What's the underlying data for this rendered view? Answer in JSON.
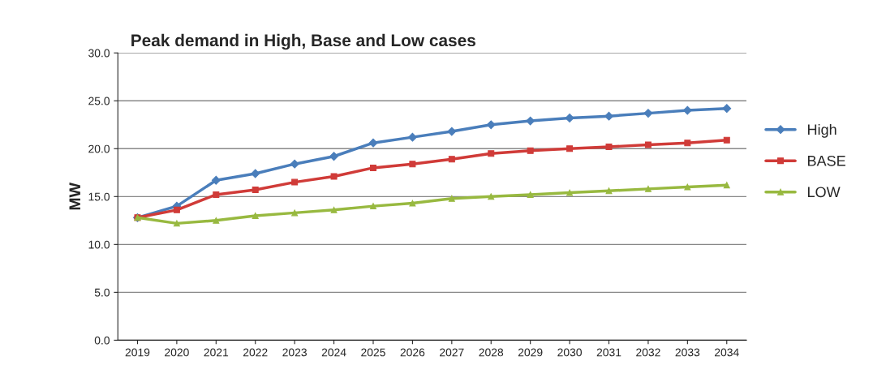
{
  "chart_data": {
    "type": "line",
    "title": "Peak demand in High, Base and Low cases",
    "ylabel": "MW",
    "categories": [
      "2019",
      "2020",
      "2021",
      "2022",
      "2023",
      "2024",
      "2025",
      "2026",
      "2027",
      "2028",
      "2029",
      "2030",
      "2031",
      "2032",
      "2033",
      "2034"
    ],
    "series": [
      {
        "name": "High",
        "color": "#4a7ebb",
        "marker": "diamond",
        "values": [
          12.8,
          14.0,
          16.7,
          17.4,
          18.4,
          19.2,
          20.6,
          21.2,
          21.8,
          22.5,
          22.9,
          23.2,
          23.4,
          23.7,
          24.0,
          24.2
        ]
      },
      {
        "name": "BASE",
        "color": "#d03b38",
        "marker": "square",
        "values": [
          12.8,
          13.6,
          15.2,
          15.7,
          16.5,
          17.1,
          18.0,
          18.4,
          18.9,
          19.5,
          19.8,
          20.0,
          20.2,
          20.4,
          20.6,
          20.9
        ]
      },
      {
        "name": "LOW",
        "color": "#98b940",
        "marker": "triangle",
        "values": [
          12.8,
          12.2,
          12.5,
          13.0,
          13.3,
          13.6,
          14.0,
          14.3,
          14.8,
          15.0,
          15.2,
          15.4,
          15.6,
          15.8,
          16.0,
          16.2
        ]
      }
    ],
    "ylim": [
      0,
      30
    ],
    "yticks": [
      {
        "value": 0,
        "label": "0.0"
      },
      {
        "value": 5,
        "label": "5.0"
      },
      {
        "value": 10,
        "label": "10.0"
      },
      {
        "value": 15,
        "label": "15.0"
      },
      {
        "value": 20,
        "label": "20.0"
      },
      {
        "value": 25,
        "label": "25.0"
      },
      {
        "value": 30,
        "label": "30.0"
      }
    ],
    "grid": "y",
    "legend": "right",
    "line_style": "solid"
  }
}
